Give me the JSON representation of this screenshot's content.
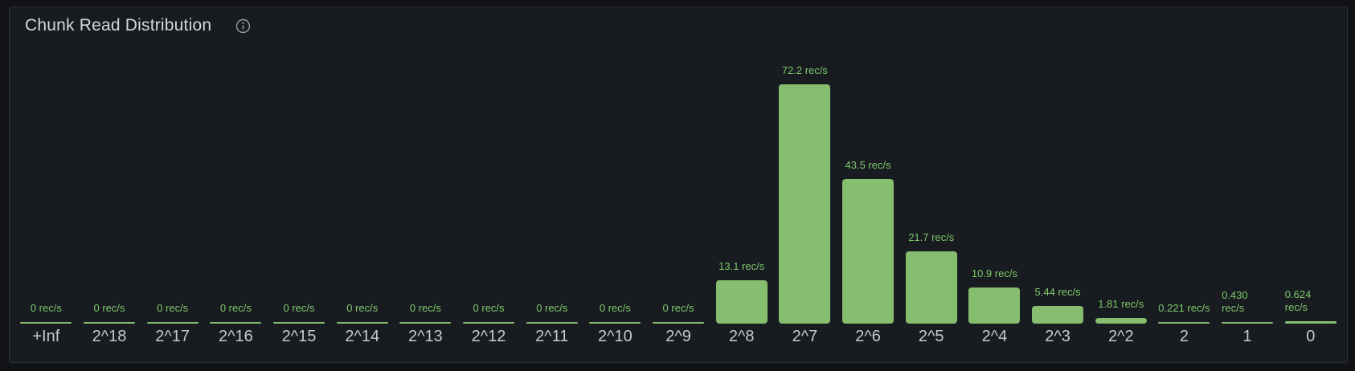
{
  "panel": {
    "title": "Chunk Read Distribution",
    "info_icon": "info-circle-icon"
  },
  "colors": {
    "page_bg": "#111217",
    "panel_bg": "#181b1f",
    "panel_border": "#2c2f36",
    "title": "#d6d7da",
    "bar_fill": "#86be6f",
    "value_label": "#7dc96d",
    "axis_label": "#c8c9ce",
    "info_icon": "#9a9da2"
  },
  "chart_data": {
    "type": "bar",
    "title": "Chunk Read Distribution",
    "orientation": "vertical",
    "unit": "rec/s",
    "categories": [
      "+Inf",
      "2^18",
      "2^17",
      "2^16",
      "2^15",
      "2^14",
      "2^13",
      "2^12",
      "2^11",
      "2^10",
      "2^9",
      "2^8",
      "2^7",
      "2^6",
      "2^5",
      "2^4",
      "2^3",
      "2^2",
      "2",
      "1",
      "0"
    ],
    "values": [
      0,
      0,
      0,
      0,
      0,
      0,
      0,
      0,
      0,
      0,
      0,
      13.1,
      72.2,
      43.5,
      21.7,
      10.9,
      5.44,
      1.81,
      0.221,
      0.43,
      0.624
    ],
    "value_labels": [
      "0 rec/s",
      "0 rec/s",
      "0 rec/s",
      "0 rec/s",
      "0 rec/s",
      "0 rec/s",
      "0 rec/s",
      "0 rec/s",
      "0 rec/s",
      "0 rec/s",
      "0 rec/s",
      "13.1 rec/s",
      "72.2 rec/s",
      "43.5 rec/s",
      "21.7 rec/s",
      "10.9 rec/s",
      "5.44 rec/s",
      "1.81 rec/s",
      "0.221 rec/s",
      "0.430\nrec/s",
      "0.624\nrec/s"
    ],
    "ylim": [
      0,
      72.2
    ],
    "xlabel": "",
    "ylabel": "",
    "grid": false,
    "legend": false,
    "y_axis_visible": false
  }
}
